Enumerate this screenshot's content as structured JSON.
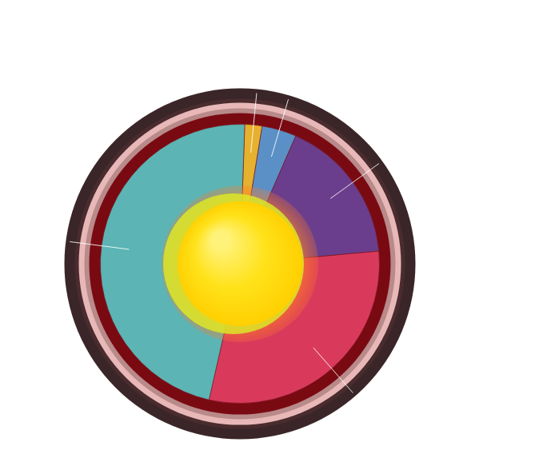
{
  "chart_data": {
    "type": "pie",
    "values": [
      2,
      4,
      17,
      30,
      47
    ],
    "colors": [
      "#e6b12e",
      "#5a90c6",
      "#6a3e8c",
      "#d93a5c",
      "#5cb4b4"
    ],
    "legend": false,
    "data_labels": false
  }
}
